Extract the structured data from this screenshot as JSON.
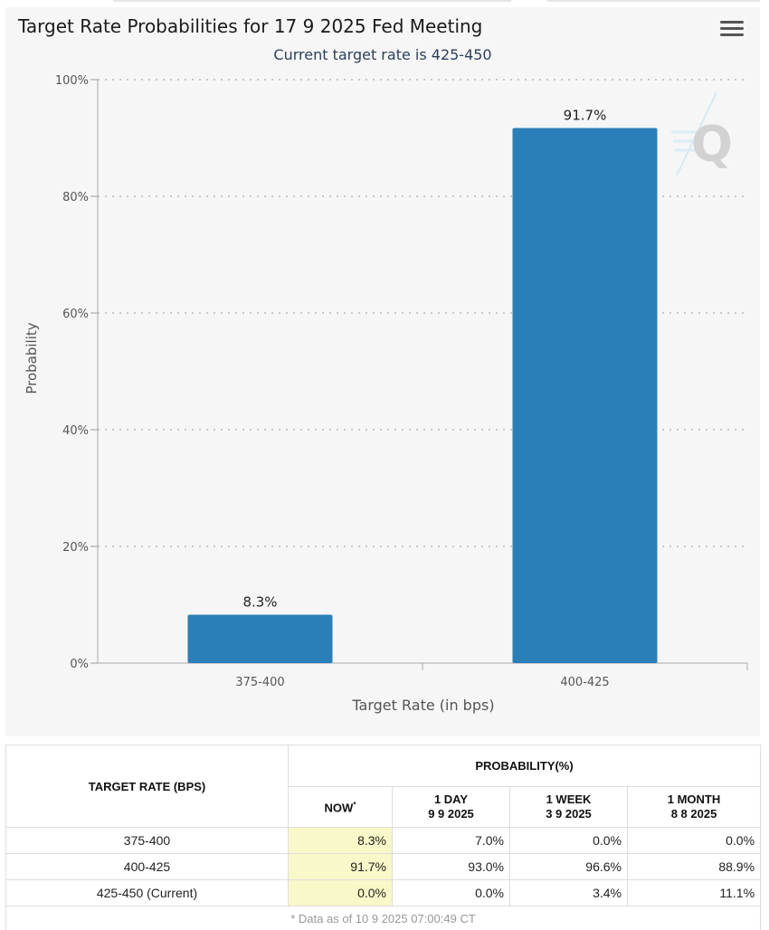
{
  "chart": {
    "title": "Target Rate Probabilities for 17 9 2025 Fed Meeting",
    "subtitle": "Current target rate is 425-450",
    "menu_icon": "hamburger-menu-icon",
    "watermark_icon": "q-logo-icon",
    "bar_color": "#2b7fb8"
  },
  "chart_data": {
    "type": "bar",
    "title": "Target Rate Probabilities for 17 9 2025 Fed Meeting",
    "subtitle": "Current target rate is 425-450",
    "categories": [
      "375-400",
      "400-425"
    ],
    "values": [
      8.3,
      91.7
    ],
    "data_labels": [
      "8.3%",
      "91.7%"
    ],
    "xlabel": "Target Rate (in bps)",
    "ylabel": "Probability",
    "ylim": [
      0,
      100
    ],
    "yticks": [
      0,
      20,
      40,
      60,
      80,
      100
    ],
    "ytick_labels": [
      "0%",
      "20%",
      "40%",
      "60%",
      "80%",
      "100%"
    ],
    "grid": true,
    "legend": "none"
  },
  "table": {
    "rate_header": "TARGET RATE (BPS)",
    "prob_header": "PROBABILITY(%)",
    "columns": [
      {
        "line1": "NOW",
        "line2": "",
        "note": "*"
      },
      {
        "line1": "1 DAY",
        "line2": "9 9 2025",
        "note": ""
      },
      {
        "line1": "1 WEEK",
        "line2": "3 9 2025",
        "note": ""
      },
      {
        "line1": "1 MONTH",
        "line2": "8 8 2025",
        "note": ""
      }
    ],
    "rows": [
      {
        "rate": "375-400",
        "values": [
          "8.3%",
          "7.0%",
          "0.0%",
          "0.0%"
        ]
      },
      {
        "rate": "400-425",
        "values": [
          "91.7%",
          "93.0%",
          "96.6%",
          "88.9%"
        ]
      },
      {
        "rate": "425-450 (Current)",
        "values": [
          "0.0%",
          "0.0%",
          "3.4%",
          "11.1%"
        ]
      }
    ],
    "footnote": "* Data as of 10 9 2025 07:00:49 CT"
  }
}
